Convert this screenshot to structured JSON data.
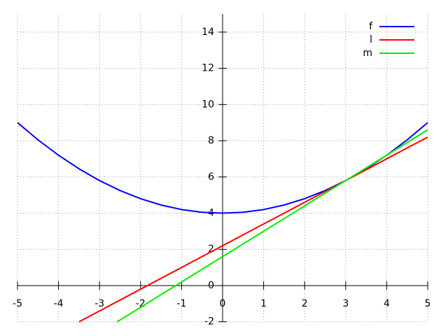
{
  "chart_data": {
    "type": "line",
    "series": [
      {
        "name": "f",
        "color": "#0000ff",
        "x": [
          -5,
          -4.5,
          -4,
          -3.5,
          -3,
          -2.5,
          -2,
          -1.5,
          -1,
          -0.5,
          0,
          0.5,
          1,
          1.5,
          2,
          2.5,
          3,
          3.5,
          4,
          4.5,
          5
        ],
        "values": [
          9,
          8.05,
          7.2,
          6.45,
          5.8,
          5.25,
          4.8,
          4.45,
          4.2,
          4.05,
          4,
          4.05,
          4.2,
          4.45,
          4.8,
          5.25,
          5.8,
          6.45,
          7.2,
          8.05,
          9
        ]
      },
      {
        "name": "l",
        "color": "#ff0000",
        "x": [
          -3.5,
          5
        ],
        "values": [
          -2,
          8.2
        ]
      },
      {
        "name": "m",
        "color": "#00ee00",
        "x": [
          -2.57,
          5
        ],
        "values": [
          -2,
          8.6
        ]
      }
    ],
    "xlim": [
      -5,
      5
    ],
    "ylim": [
      -2,
      15
    ],
    "xticks": [
      -5,
      -4,
      -3,
      -2,
      -1,
      0,
      1,
      2,
      3,
      4,
      5
    ],
    "yticks": [
      -2,
      0,
      2,
      4,
      6,
      8,
      10,
      12,
      14
    ],
    "grid": true,
    "legend": "top-right"
  }
}
